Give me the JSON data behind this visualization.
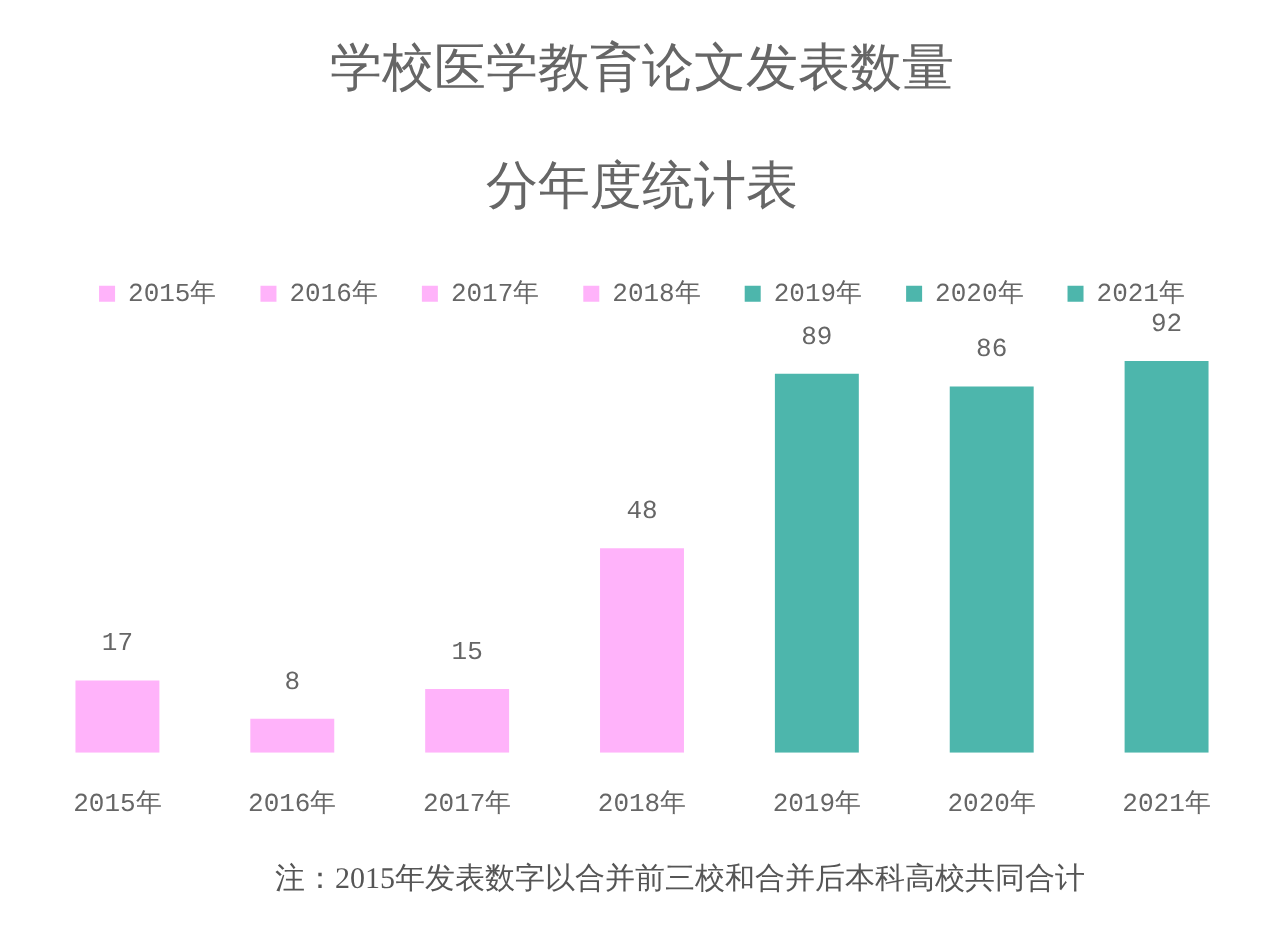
{
  "chart_data": {
    "type": "bar",
    "title": "学校医学教育论文发表数量",
    "subtitle": "分年度统计表",
    "categories": [
      "2015年",
      "2016年",
      "2017年",
      "2018年",
      "2019年",
      "2020年",
      "2021年"
    ],
    "series": [
      {
        "name": "2015年",
        "color": "#ffb3fa",
        "values": [
          17,
          null,
          null,
          null,
          null,
          null,
          null
        ]
      },
      {
        "name": "2016年",
        "color": "#ffb3fa",
        "values": [
          null,
          8,
          null,
          null,
          null,
          null,
          null
        ]
      },
      {
        "name": "2017年",
        "color": "#ffb3fa",
        "values": [
          null,
          null,
          15,
          null,
          null,
          null,
          null
        ]
      },
      {
        "name": "2018年",
        "color": "#ffb3fa",
        "values": [
          null,
          null,
          null,
          48,
          null,
          null,
          null
        ]
      },
      {
        "name": "2019年",
        "color": "#4db6ac",
        "values": [
          null,
          null,
          null,
          null,
          89,
          null,
          null
        ]
      },
      {
        "name": "2020年",
        "color": "#4db6ac",
        "values": [
          null,
          null,
          null,
          null,
          null,
          86,
          null
        ]
      },
      {
        "name": "2021年",
        "color": "#4db6ac",
        "values": [
          null,
          null,
          null,
          null,
          null,
          null,
          92
        ]
      }
    ],
    "data_labels": true,
    "legend": "top",
    "tick_labels": "x",
    "annotations": [
      "注：2015年发表数字以合并前三校和合并后本科高校共同合计"
    ]
  }
}
